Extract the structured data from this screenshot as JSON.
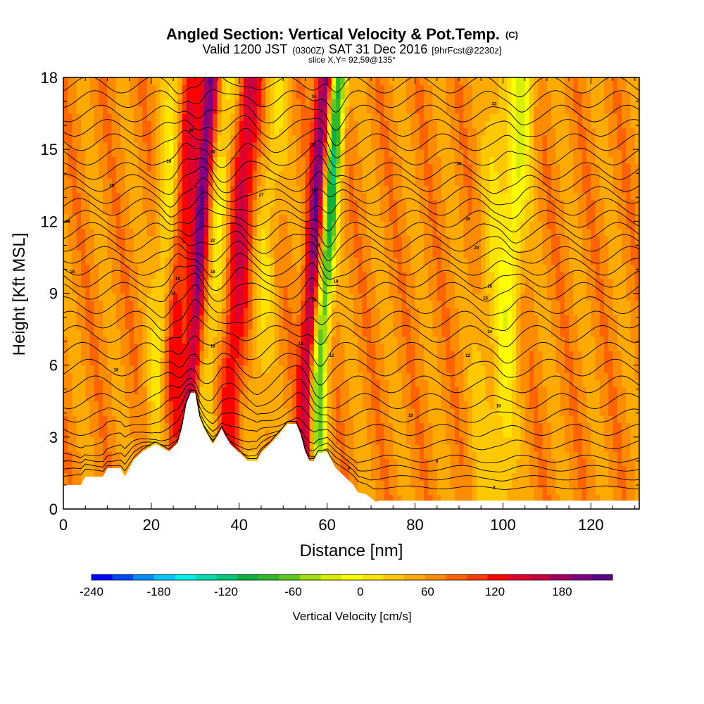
{
  "title": {
    "main": "Angled Section: Vertical Velocity & Pot.Temp.",
    "mark": "(C)",
    "valid_a": "Valid 1200 JST",
    "valid_b": "(0300Z)",
    "valid_c": "SAT 31 Dec 2016",
    "valid_d": "[9hrFcst@2230z]",
    "slice": "slice X,Y= 92,59@135°"
  },
  "chart_data": {
    "type": "heatmap",
    "xlabel": "Distance [nm]",
    "ylabel": "Height [Kft MSL]",
    "xlim": [
      0,
      131
    ],
    "ylim": [
      0,
      18
    ],
    "x_ticks": [
      0,
      20,
      40,
      60,
      80,
      100,
      120
    ],
    "y_ticks": [
      0,
      3,
      6,
      9,
      12,
      15,
      18
    ],
    "colorbar": {
      "label": "Vertical Velocity [cm/s]",
      "range": [
        -240,
        210
      ],
      "step": 15,
      "tick_values": [
        -240,
        -180,
        -120,
        -60,
        0,
        60,
        120,
        180
      ],
      "colors": [
        "#0000ff",
        "#0048ff",
        "#0090ff",
        "#00c8ff",
        "#00f0e8",
        "#00dcb0",
        "#00c878",
        "#10b040",
        "#30b828",
        "#60c820",
        "#a0dc10",
        "#d8f000",
        "#ffff00",
        "#ffe400",
        "#ffc800",
        "#ffaa00",
        "#ff8c00",
        "#ff6400",
        "#ff3c00",
        "#ff0000",
        "#e0002c",
        "#c80040",
        "#a00060",
        "#800080",
        "#5a008c"
      ]
    },
    "wave_bands": [
      {
        "x": 22,
        "w": -1.3
      },
      {
        "x": 24,
        "w": 1.5
      },
      {
        "x": 29,
        "w": 2.0
      },
      {
        "x": 33,
        "w": -0.8
      },
      {
        "x": 38,
        "w": 1.3
      },
      {
        "x": 44,
        "w": -0.6
      },
      {
        "x": 55,
        "w": 2.0
      },
      {
        "x": 58,
        "w": -2.4
      },
      {
        "x": 95,
        "w": -0.5
      },
      {
        "x": 100,
        "w": -1.1
      }
    ],
    "terrain": [
      [
        0,
        1
      ],
      [
        4,
        1
      ],
      [
        5,
        1.35
      ],
      [
        9,
        1.35
      ],
      [
        10,
        1.7
      ],
      [
        13,
        1.7
      ],
      [
        14,
        1.35
      ],
      [
        16,
        2.05
      ],
      [
        18,
        2.4
      ],
      [
        21,
        2.7
      ],
      [
        24,
        2.4
      ],
      [
        26,
        2.75
      ],
      [
        27,
        3.4
      ],
      [
        28,
        4.4
      ],
      [
        29,
        4.85
      ],
      [
        30,
        4.85
      ],
      [
        31,
        3.8
      ],
      [
        32,
        3.35
      ],
      [
        33,
        3.0
      ],
      [
        34,
        2.7
      ],
      [
        35,
        3.0
      ],
      [
        36,
        3.35
      ],
      [
        37,
        3.0
      ],
      [
        38,
        2.7
      ],
      [
        40,
        2.35
      ],
      [
        42,
        2.0
      ],
      [
        44,
        2.0
      ],
      [
        45,
        2.35
      ],
      [
        47,
        2.7
      ],
      [
        49,
        3.1
      ],
      [
        51,
        3.55
      ],
      [
        53,
        3.55
      ],
      [
        54,
        3.1
      ],
      [
        55,
        2.4
      ],
      [
        56,
        2.0
      ],
      [
        57,
        2.0
      ],
      [
        58,
        2.35
      ],
      [
        60,
        2.35
      ],
      [
        62,
        1.7
      ],
      [
        64,
        1.35
      ],
      [
        66,
        1.0
      ],
      [
        67,
        0.7
      ],
      [
        69,
        0.6
      ],
      [
        71,
        0.3
      ],
      [
        72,
        0.35
      ],
      [
        131,
        0.35
      ]
    ],
    "theta_contours": [
      {
        "level": 6,
        "z": 0.9
      },
      {
        "level": 7,
        "z": 1.3
      },
      {
        "level": 8,
        "z": 1.7
      },
      {
        "level": 9,
        "z": 2.1
      },
      {
        "level": 10,
        "z": 2.7
      },
      {
        "level": 11,
        "z": 3.3
      },
      {
        "level": 12,
        "z": 3.9
      },
      {
        "level": 13,
        "z": 4.5
      },
      {
        "level": 14,
        "z": 5.2
      },
      {
        "level": 15,
        "z": 5.9
      },
      {
        "level": 16,
        "z": 6.6
      },
      {
        "level": 17,
        "z": 7.3
      },
      {
        "level": 18,
        "z": 7.9
      },
      {
        "level": 19,
        "z": 8.5
      },
      {
        "level": 20,
        "z": 9.1
      },
      {
        "level": 21,
        "z": 9.6
      },
      {
        "level": 22,
        "z": 10.1
      },
      {
        "level": 23,
        "z": 10.6
      },
      {
        "level": 24,
        "z": 11.1
      },
      {
        "level": 25,
        "z": 11.6
      },
      {
        "level": 26,
        "z": 12.1
      },
      {
        "level": 27,
        "z": 12.6
      },
      {
        "level": 28,
        "z": 13.1
      },
      {
        "level": 29,
        "z": 13.6
      },
      {
        "level": 30,
        "z": 14.1
      },
      {
        "level": 31,
        "z": 14.7
      },
      {
        "level": 32,
        "z": 15.3
      },
      {
        "level": 33,
        "z": 15.9
      },
      {
        "level": 34,
        "z": 16.5
      },
      {
        "level": 35,
        "z": 17.1
      },
      {
        "level": 36,
        "z": 17.7
      }
    ],
    "contour_labels": [
      {
        "x": 1,
        "y": 12.0,
        "text": "28"
      },
      {
        "x": 2,
        "y": 9.9,
        "text": "18"
      },
      {
        "x": 12,
        "y": 5.8,
        "text": "10"
      },
      {
        "x": 11,
        "y": 13.5,
        "text": "26"
      },
      {
        "x": 24,
        "y": 14.5,
        "text": "28"
      },
      {
        "x": 29,
        "y": 15.8,
        "text": "30"
      },
      {
        "x": 26,
        "y": 9.6,
        "text": "18"
      },
      {
        "x": 25,
        "y": 9.0,
        "text": "14"
      },
      {
        "x": 34,
        "y": 14.9,
        "text": "30"
      },
      {
        "x": 34,
        "y": 11.2,
        "text": "22"
      },
      {
        "x": 34,
        "y": 9.9,
        "text": "18"
      },
      {
        "x": 34,
        "y": 6.8,
        "text": "10"
      },
      {
        "x": 45,
        "y": 13.1,
        "text": "27"
      },
      {
        "x": 57,
        "y": 17.2,
        "text": "34"
      },
      {
        "x": 57,
        "y": 15.2,
        "text": "31"
      },
      {
        "x": 57,
        "y": 13.3,
        "text": "28"
      },
      {
        "x": 58,
        "y": 11.0,
        "text": "21"
      },
      {
        "x": 62,
        "y": 9.5,
        "text": "18"
      },
      {
        "x": 57,
        "y": 8.7,
        "text": "15"
      },
      {
        "x": 54,
        "y": 6.9,
        "text": "14"
      },
      {
        "x": 61,
        "y": 6.4,
        "text": "12"
      },
      {
        "x": 65,
        "y": 1.7,
        "text": "8"
      },
      {
        "x": 79,
        "y": 3.9,
        "text": "10"
      },
      {
        "x": 85,
        "y": 2.0,
        "text": "8"
      },
      {
        "x": 92,
        "y": 12.1,
        "text": "26"
      },
      {
        "x": 94,
        "y": 10.9,
        "text": "20"
      },
      {
        "x": 96,
        "y": 8.8,
        "text": "15"
      },
      {
        "x": 97,
        "y": 9.3,
        "text": "16"
      },
      {
        "x": 97,
        "y": 7.4,
        "text": "14"
      },
      {
        "x": 92,
        "y": 6.4,
        "text": "12"
      },
      {
        "x": 99,
        "y": 4.3,
        "text": "10"
      },
      {
        "x": 98,
        "y": 0.9,
        "text": "8"
      },
      {
        "x": 90,
        "y": 14.4,
        "text": "30"
      },
      {
        "x": 98,
        "y": 16.9,
        "text": "33"
      }
    ]
  }
}
